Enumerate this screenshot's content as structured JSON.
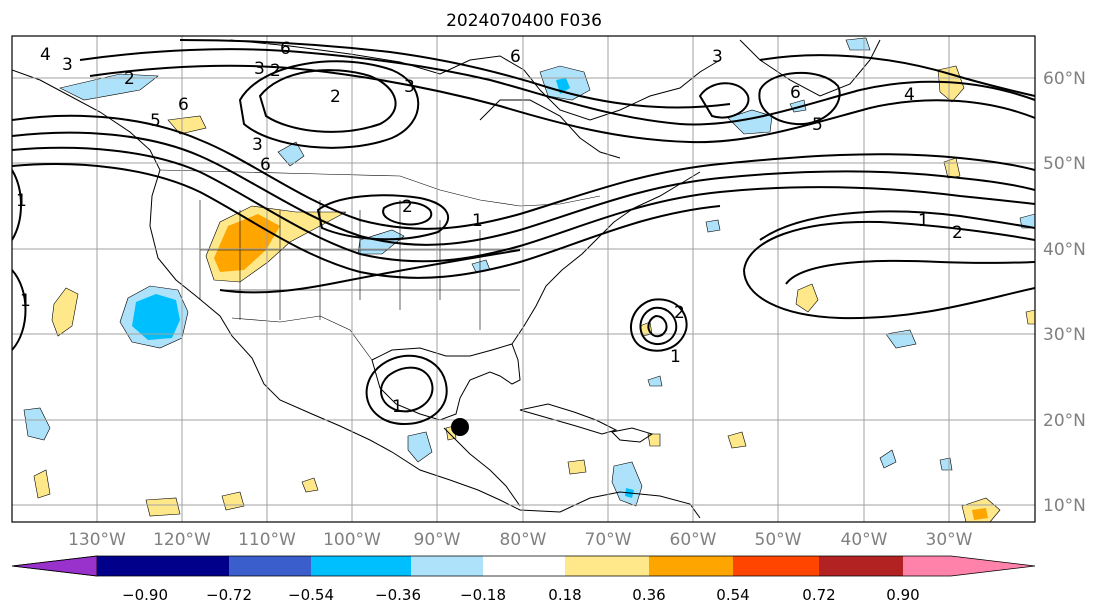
{
  "title": "2024070400 F036",
  "map": {
    "lon_labels": [
      "130°W",
      "120°W",
      "110°W",
      "100°W",
      "90°W",
      "80°W",
      "70°W",
      "60°W",
      "50°W",
      "40°W",
      "30°W"
    ],
    "lat_labels": [
      "60°N",
      "50°N",
      "40°N",
      "30°N",
      "20°N",
      "10°N"
    ],
    "contour_labels": [
      "4",
      "3",
      "2",
      "5",
      "6",
      "2",
      "3",
      "6",
      "3",
      "6",
      "3",
      "2",
      "1",
      "6",
      "5",
      "3",
      "6",
      "4",
      "1",
      "2",
      "1",
      "1",
      "2",
      "1",
      "2",
      "1"
    ],
    "marker": "storm-center-dot"
  },
  "colorbar": {
    "ticks": [
      "−0.90",
      "−0.72",
      "−0.54",
      "−0.36",
      "−0.18",
      "0.18",
      "0.36",
      "0.54",
      "0.72",
      "0.90"
    ],
    "colors": [
      "#9932cc",
      "#00008b",
      "#3a5fcd",
      "#00bfff",
      "#aee2fa",
      "#ffffff",
      "#ffe88a",
      "#ffa500",
      "#ff4500",
      "#b22222",
      "#ff82ab"
    ]
  }
}
